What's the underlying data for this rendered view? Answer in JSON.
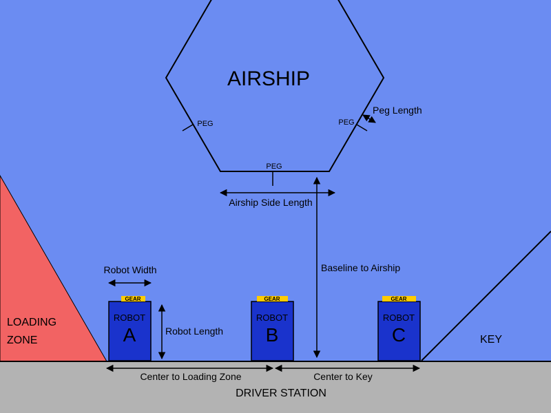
{
  "colors": {
    "field": "#6b8cf2",
    "loading_zone": "#f26363",
    "driver_station": "#b3b3b3",
    "robot": "#1a33cc",
    "gear": "#ffcc00"
  },
  "airship": {
    "title": "AIRSHIP",
    "peg_label": "PEG"
  },
  "zones": {
    "loading_line1": "LOADING",
    "loading_line2": "ZONE",
    "key": "KEY",
    "driver_station": "DRIVER STATION"
  },
  "robots": [
    {
      "gear": "GEAR",
      "label": "ROBOT",
      "letter": "A"
    },
    {
      "gear": "GEAR",
      "label": "ROBOT",
      "letter": "B"
    },
    {
      "gear": "GEAR",
      "label": "ROBOT",
      "letter": "C"
    }
  ],
  "dimensions": {
    "peg_length": "Peg Length",
    "airship_side_length": "Airship Side Length",
    "baseline_to_airship": "Baseline to Airship",
    "robot_width": "Robot Width",
    "robot_length": "Robot Length",
    "center_to_loading_zone": "Center to Loading Zone",
    "center_to_key": "Center to Key"
  }
}
